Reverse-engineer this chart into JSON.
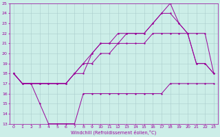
{
  "xlabel": "Windchill (Refroidissement éolien,°C)",
  "background_color": "#cceee8",
  "grid_color": "#aacccc",
  "line_color": "#990099",
  "line1_x": [
    0,
    1,
    2,
    3,
    4,
    5,
    6,
    7,
    8,
    9,
    10,
    11,
    12,
    13,
    14,
    15,
    16,
    17,
    18,
    19,
    20,
    21,
    22,
    23
  ],
  "line1_y": [
    18,
    17,
    17,
    15,
    13,
    13,
    13,
    13,
    16,
    16,
    16,
    16,
    16,
    16,
    16,
    16,
    16,
    16,
    17,
    17,
    17,
    17,
    17,
    17
  ],
  "line2_x": [
    0,
    1,
    2,
    3,
    4,
    5,
    6,
    7,
    8,
    9,
    10,
    11,
    12,
    13,
    14,
    15,
    16,
    17,
    18,
    19,
    20,
    21,
    22,
    23
  ],
  "line2_y": [
    18,
    17,
    17,
    17,
    17,
    17,
    17,
    18,
    19,
    19,
    20,
    20,
    21,
    21,
    21,
    21,
    22,
    22,
    22,
    22,
    22,
    22,
    22,
    18
  ],
  "line3_x": [
    0,
    1,
    2,
    3,
    4,
    5,
    6,
    7,
    8,
    9,
    10,
    11,
    12,
    13,
    14,
    15,
    16,
    17,
    18,
    19,
    20,
    21,
    22,
    23
  ],
  "line3_y": [
    18,
    17,
    17,
    17,
    17,
    17,
    17,
    18,
    19,
    20,
    21,
    21,
    21,
    22,
    22,
    22,
    23,
    24,
    25,
    23,
    22,
    19,
    19,
    18
  ],
  "line4_x": [
    0,
    1,
    2,
    3,
    4,
    5,
    6,
    7,
    8,
    9,
    10,
    11,
    12,
    13,
    14,
    15,
    16,
    17,
    18,
    19,
    20,
    21,
    22,
    23
  ],
  "line4_y": [
    18,
    17,
    17,
    17,
    17,
    17,
    17,
    18,
    18,
    20,
    21,
    21,
    22,
    22,
    22,
    22,
    23,
    24,
    24,
    23,
    22,
    19,
    19,
    18
  ],
  "xlim": [
    -0.5,
    23.5
  ],
  "ylim": [
    13,
    25
  ],
  "yticks": [
    13,
    14,
    15,
    16,
    17,
    18,
    19,
    20,
    21,
    22,
    23,
    24,
    25
  ],
  "xticks": [
    0,
    1,
    2,
    3,
    4,
    5,
    6,
    7,
    8,
    9,
    10,
    11,
    12,
    13,
    14,
    15,
    16,
    17,
    18,
    19,
    20,
    21,
    22,
    23
  ]
}
